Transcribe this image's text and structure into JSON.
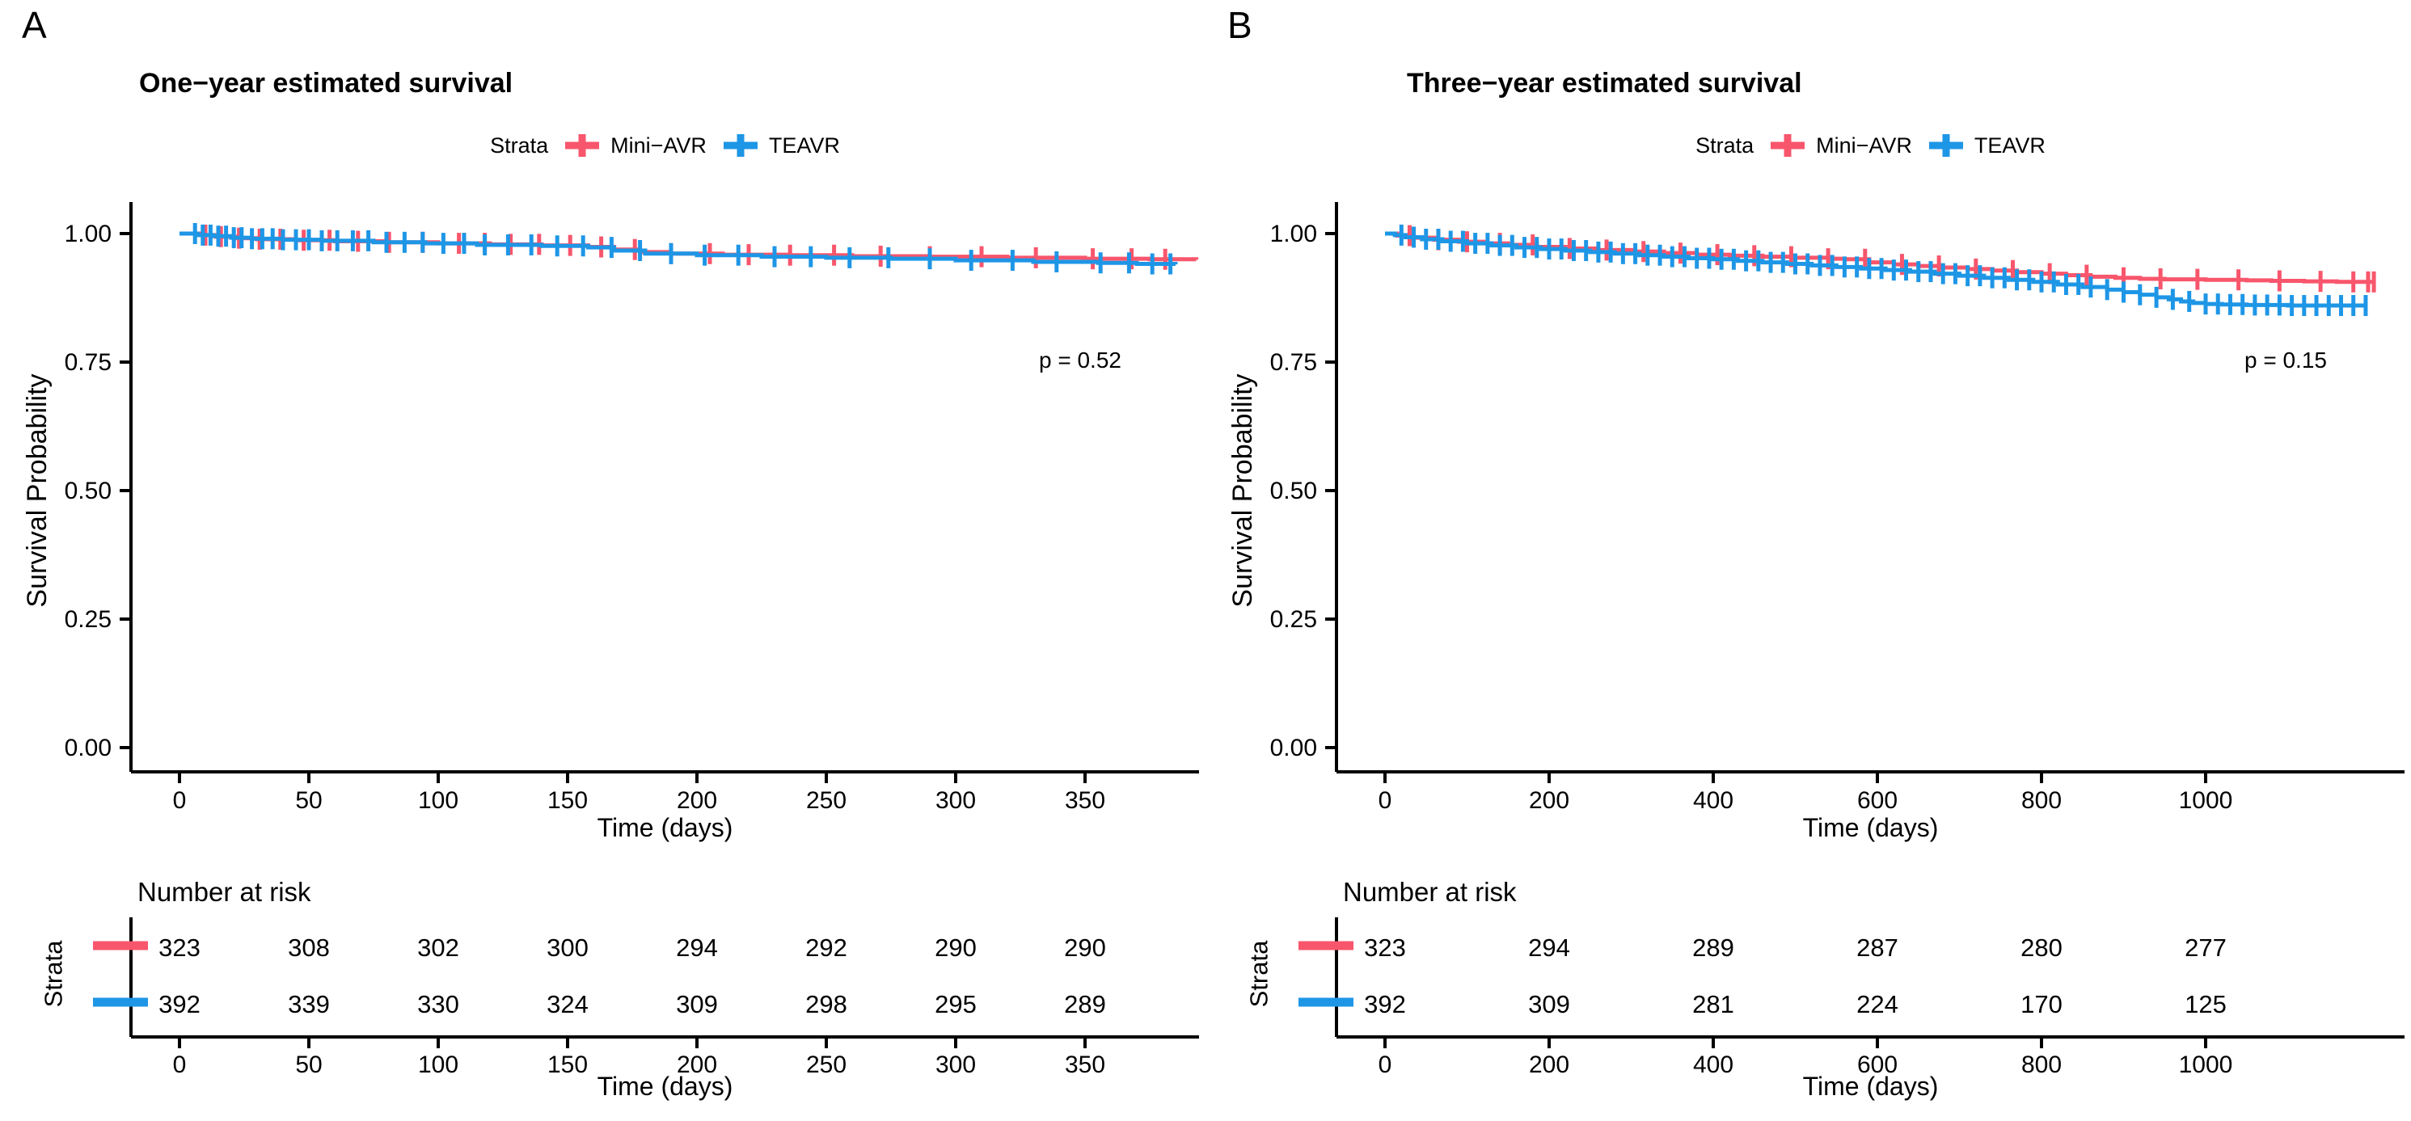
{
  "colors": {
    "mini_avr": "#F8566C",
    "teavr": "#1E96E6",
    "axis": "#000000",
    "background": "#FFFFFF"
  },
  "chart_data": [
    {
      "panel_letter": "A",
      "type": "line",
      "chart_kind": "kaplan-meier-survival",
      "title": "One−year estimated survival",
      "legend_title": "Strata",
      "legend_position": "top",
      "p_value": "p = 0.52",
      "xlabel": "Time (days)",
      "ylabel": "Survival Probability",
      "x_ticks": [
        0,
        50,
        100,
        150,
        200,
        250,
        300,
        350
      ],
      "y_ticks": [
        "1.00",
        "0.75",
        "0.50",
        "0.25",
        "0.00"
      ],
      "xlim": [
        0,
        393
      ],
      "ylim": [
        0,
        1
      ],
      "grid": false,
      "series": [
        {
          "name": "Mini−AVR",
          "color": "#F8566C",
          "steps": [
            [
              0,
              1
            ],
            [
              8,
              0.997
            ],
            [
              14,
              0.994
            ],
            [
              22,
              0.991
            ],
            [
              30,
              0.989
            ],
            [
              45,
              0.987
            ],
            [
              60,
              0.985
            ],
            [
              80,
              0.983
            ],
            [
              100,
              0.981
            ],
            [
              120,
              0.979
            ],
            [
              140,
              0.977
            ],
            [
              158,
              0.974
            ],
            [
              168,
              0.969
            ],
            [
              178,
              0.964
            ],
            [
              190,
              0.961
            ],
            [
              210,
              0.959
            ],
            [
              235,
              0.958
            ],
            [
              260,
              0.956
            ],
            [
              290,
              0.955
            ],
            [
              320,
              0.953
            ],
            [
              350,
              0.951
            ],
            [
              375,
              0.95
            ],
            [
              393,
              0.949
            ]
          ],
          "censor_days": [
            10,
            16,
            23,
            31,
            39,
            48,
            58,
            69,
            81,
            94,
            108,
            118,
            128,
            139,
            151,
            163,
            176,
            190,
            205,
            220,
            236,
            253,
            271,
            290,
            310,
            331,
            353,
            368,
            381
          ]
        },
        {
          "name": "TEAVR",
          "color": "#1E96E6",
          "steps": [
            [
              0,
              1
            ],
            [
              7,
              0.997
            ],
            [
              13,
              0.995
            ],
            [
              20,
              0.992
            ],
            [
              28,
              0.99
            ],
            [
              40,
              0.988
            ],
            [
              55,
              0.986
            ],
            [
              75,
              0.983
            ],
            [
              95,
              0.981
            ],
            [
              115,
              0.978
            ],
            [
              140,
              0.976
            ],
            [
              158,
              0.973
            ],
            [
              168,
              0.967
            ],
            [
              180,
              0.961
            ],
            [
              200,
              0.958
            ],
            [
              225,
              0.955
            ],
            [
              250,
              0.953
            ],
            [
              275,
              0.951
            ],
            [
              300,
              0.948
            ],
            [
              330,
              0.945
            ],
            [
              355,
              0.943
            ],
            [
              370,
              0.941
            ],
            [
              385,
              0.94
            ]
          ],
          "censor_days": [
            6,
            9,
            12,
            15,
            18,
            21,
            24,
            28,
            32,
            36,
            40,
            45,
            50,
            55,
            61,
            67,
            73,
            80,
            87,
            94,
            102,
            110,
            118,
            127,
            136,
            146,
            156,
            167,
            178,
            190,
            203,
            216,
            230,
            244,
            259,
            274,
            290,
            306,
            322,
            339,
            356,
            367,
            376,
            383
          ]
        }
      ],
      "risk_table": {
        "header": "Number at risk",
        "axis_label": "Strata",
        "xlabel": "Time (days)",
        "x_ticks": [
          0,
          50,
          100,
          150,
          200,
          250,
          300,
          350
        ],
        "rows": [
          {
            "name": "Mini−AVR",
            "color": "#F8566C",
            "values": [
              "323",
              "308",
              "302",
              "300",
              "294",
              "292",
              "290",
              "290"
            ]
          },
          {
            "name": "TEAVR",
            "color": "#1E96E6",
            "values": [
              "392",
              "339",
              "330",
              "324",
              "309",
              "298",
              "295",
              "289"
            ]
          }
        ]
      }
    },
    {
      "panel_letter": "B",
      "type": "line",
      "chart_kind": "kaplan-meier-survival",
      "title": "Three−year estimated survival",
      "legend_title": "Strata",
      "legend_position": "top",
      "p_value": "p = 0.15",
      "xlabel": "Time (days)",
      "ylabel": "Survival Probability",
      "x_ticks": [
        0,
        200,
        400,
        600,
        800,
        1000
      ],
      "y_ticks": [
        "1.00",
        "0.75",
        "0.50",
        "0.25",
        "0.00"
      ],
      "xlim": [
        0,
        1207
      ],
      "ylim": [
        0,
        1
      ],
      "grid": false,
      "series": [
        {
          "name": "Mini−AVR",
          "color": "#F8566C",
          "steps": [
            [
              0,
              1
            ],
            [
              15,
              0.996
            ],
            [
              35,
              0.992
            ],
            [
              60,
              0.988
            ],
            [
              90,
              0.984
            ],
            [
              120,
              0.981
            ],
            [
              150,
              0.978
            ],
            [
              185,
              0.974
            ],
            [
              220,
              0.971
            ],
            [
              260,
              0.968
            ],
            [
              300,
              0.965
            ],
            [
              340,
              0.962
            ],
            [
              380,
              0.959
            ],
            [
              420,
              0.957
            ],
            [
              460,
              0.955
            ],
            [
              500,
              0.953
            ],
            [
              540,
              0.951
            ],
            [
              560,
              0.95
            ],
            [
              590,
              0.944
            ],
            [
              620,
              0.94
            ],
            [
              650,
              0.937
            ],
            [
              680,
              0.934
            ],
            [
              710,
              0.931
            ],
            [
              740,
              0.928
            ],
            [
              770,
              0.925
            ],
            [
              800,
              0.922
            ],
            [
              830,
              0.919
            ],
            [
              860,
              0.916
            ],
            [
              890,
              0.914
            ],
            [
              920,
              0.912
            ],
            [
              950,
              0.911
            ],
            [
              1000,
              0.91
            ],
            [
              1050,
              0.909
            ],
            [
              1080,
              0.908
            ],
            [
              1120,
              0.907
            ],
            [
              1160,
              0.906
            ],
            [
              1207,
              0.906
            ]
          ],
          "censor_days": [
            30,
            65,
            100,
            140,
            180,
            225,
            270,
            315,
            360,
            405,
            450,
            495,
            540,
            585,
            630,
            675,
            720,
            765,
            810,
            855,
            900,
            945,
            990,
            1040,
            1090,
            1140,
            1180,
            1198,
            1205
          ]
        },
        {
          "name": "TEAVR",
          "color": "#1E96E6",
          "steps": [
            [
              0,
              1
            ],
            [
              12,
              0.997
            ],
            [
              25,
              0.993
            ],
            [
              45,
              0.989
            ],
            [
              70,
              0.985
            ],
            [
              100,
              0.981
            ],
            [
              130,
              0.977
            ],
            [
              160,
              0.973
            ],
            [
              190,
              0.97
            ],
            [
              220,
              0.967
            ],
            [
              250,
              0.964
            ],
            [
              280,
              0.961
            ],
            [
              310,
              0.958
            ],
            [
              340,
              0.955
            ],
            [
              370,
              0.952
            ],
            [
              400,
              0.95
            ],
            [
              430,
              0.947
            ],
            [
              460,
              0.944
            ],
            [
              490,
              0.941
            ],
            [
              520,
              0.938
            ],
            [
              550,
              0.935
            ],
            [
              580,
              0.932
            ],
            [
              610,
              0.929
            ],
            [
              640,
              0.926
            ],
            [
              670,
              0.922
            ],
            [
              700,
              0.918
            ],
            [
              730,
              0.914
            ],
            [
              760,
              0.91
            ],
            [
              790,
              0.906
            ],
            [
              820,
              0.901
            ],
            [
              850,
              0.896
            ],
            [
              880,
              0.891
            ],
            [
              900,
              0.886
            ],
            [
              920,
              0.881
            ],
            [
              940,
              0.876
            ],
            [
              955,
              0.872
            ],
            [
              970,
              0.868
            ],
            [
              985,
              0.865
            ],
            [
              1000,
              0.863
            ],
            [
              1020,
              0.862
            ],
            [
              1050,
              0.861
            ],
            [
              1100,
              0.86
            ],
            [
              1150,
              0.86
            ],
            [
              1195,
              0.86
            ]
          ],
          "censor_days": [
            20,
            35,
            50,
            65,
            80,
            95,
            110,
            125,
            140,
            155,
            170,
            185,
            200,
            215,
            230,
            245,
            260,
            275,
            290,
            305,
            320,
            335,
            350,
            365,
            380,
            395,
            410,
            425,
            440,
            455,
            470,
            485,
            500,
            515,
            530,
            545,
            560,
            575,
            590,
            605,
            620,
            635,
            650,
            665,
            680,
            695,
            710,
            725,
            740,
            755,
            770,
            785,
            800,
            815,
            830,
            845,
            860,
            880,
            900,
            920,
            940,
            960,
            980,
            1000,
            1015,
            1030,
            1045,
            1060,
            1075,
            1090,
            1105,
            1120,
            1135,
            1150,
            1165,
            1180,
            1195
          ]
        }
      ],
      "risk_table": {
        "header": "Number at risk",
        "axis_label": "Strata",
        "xlabel": "Time (days)",
        "x_ticks": [
          0,
          200,
          400,
          600,
          800,
          1000
        ],
        "rows": [
          {
            "name": "Mini−AVR",
            "color": "#F8566C",
            "values": [
              "323",
              "294",
              "289",
              "287",
              "280",
              "277"
            ]
          },
          {
            "name": "TEAVR",
            "color": "#1E96E6",
            "values": [
              "392",
              "309",
              "281",
              "224",
              "170",
              "125"
            ]
          }
        ]
      }
    }
  ]
}
